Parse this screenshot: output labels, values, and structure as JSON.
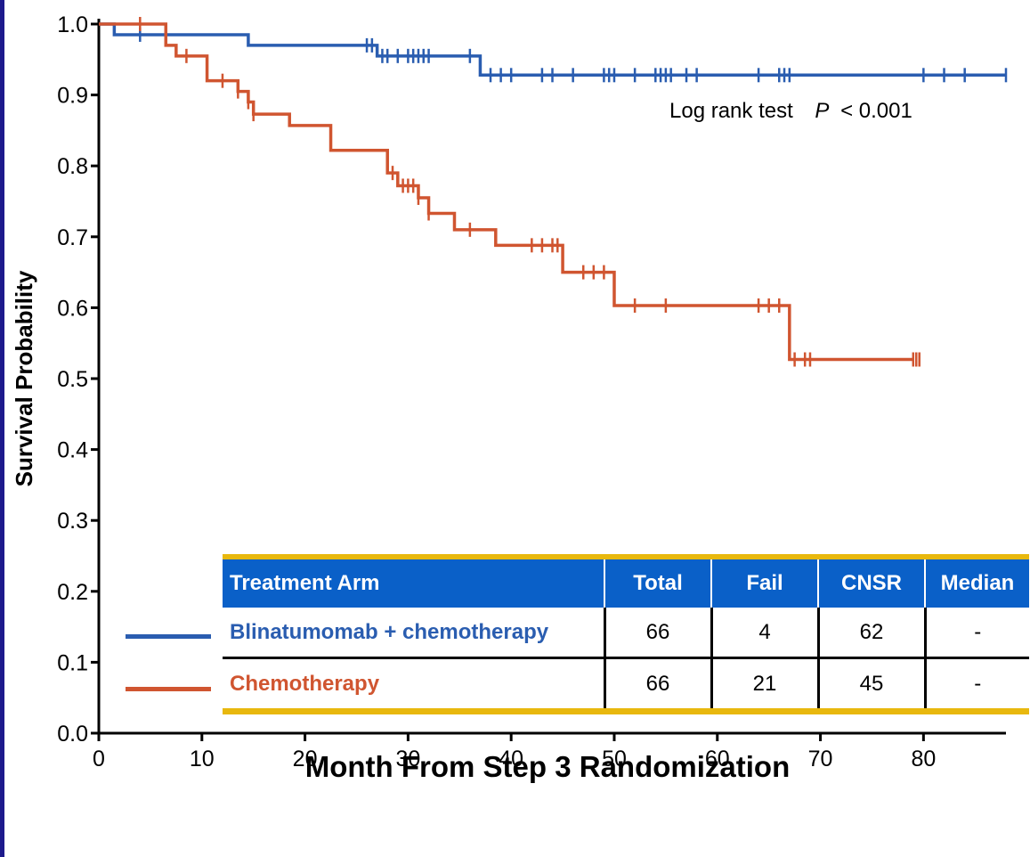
{
  "chart_data": {
    "type": "line",
    "subtype": "kaplan-meier",
    "title": "",
    "xlabel": "Month From Step 3 Randomization",
    "ylabel": "Survival Probability",
    "xlim": [
      0,
      88
    ],
    "ylim": [
      0,
      1.0
    ],
    "xticks": [
      0,
      10,
      20,
      30,
      40,
      50,
      60,
      70,
      80
    ],
    "yticks": [
      "0.0",
      "0.1",
      "0.2",
      "0.3",
      "0.4",
      "0.5",
      "0.6",
      "0.7",
      "0.8",
      "0.9",
      "1.0"
    ],
    "grid": false,
    "annotation": {
      "text": "Log rank test",
      "p_label": "P",
      "p_value": "< 0.001"
    },
    "series": [
      {
        "name": "Blinatumomab + chemotherapy",
        "color": "#2a5db0",
        "x": [
          0,
          1.5,
          14.5,
          27,
          37,
          88
        ],
        "y": [
          1.0,
          0.985,
          0.97,
          0.955,
          0.928,
          0.928
        ],
        "censor_x": [
          4,
          26,
          26.5,
          27.5,
          28,
          29,
          30,
          30.5,
          31,
          31.5,
          32,
          36,
          38,
          39,
          40,
          43,
          44,
          46,
          49,
          49.5,
          50,
          52,
          54,
          54.5,
          55,
          55.5,
          57,
          58,
          64,
          66,
          66.5,
          67,
          80,
          82,
          84,
          88
        ]
      },
      {
        "name": "Chemotherapy",
        "color": "#d05530",
        "x": [
          0,
          6.5,
          7.5,
          10.5,
          13.5,
          14.5,
          15,
          18.5,
          22.5,
          28,
          29,
          31,
          32,
          34.5,
          38.5,
          45,
          50,
          67,
          79
        ],
        "y": [
          1.0,
          0.97,
          0.955,
          0.92,
          0.905,
          0.89,
          0.873,
          0.857,
          0.822,
          0.79,
          0.772,
          0.755,
          0.733,
          0.71,
          0.688,
          0.65,
          0.603,
          0.527,
          0.527
        ],
        "censor_x": [
          4,
          8.5,
          12,
          13.5,
          14.5,
          15,
          28.5,
          29.5,
          30,
          30.5,
          31,
          32,
          36,
          42,
          43,
          44,
          44.5,
          47,
          48,
          49,
          52,
          55,
          64,
          65,
          66,
          67.5,
          68.5,
          69,
          79,
          79.3,
          79.6
        ]
      }
    ]
  },
  "table": {
    "headers": [
      "Treatment Arm",
      "Total",
      "Fail",
      "CNSR",
      "Median"
    ],
    "rows": [
      {
        "arm": "Blinatumomab + chemotherapy",
        "total": "66",
        "fail": "4",
        "cnsr": "62",
        "median": "-"
      },
      {
        "arm": "Chemotherapy",
        "total": "66",
        "fail": "21",
        "cnsr": "45",
        "median": "-"
      }
    ]
  },
  "colors": {
    "header_bg": "#0a60c8",
    "accent_gold": "#e8b80e",
    "frame": "#1d1a8c"
  }
}
